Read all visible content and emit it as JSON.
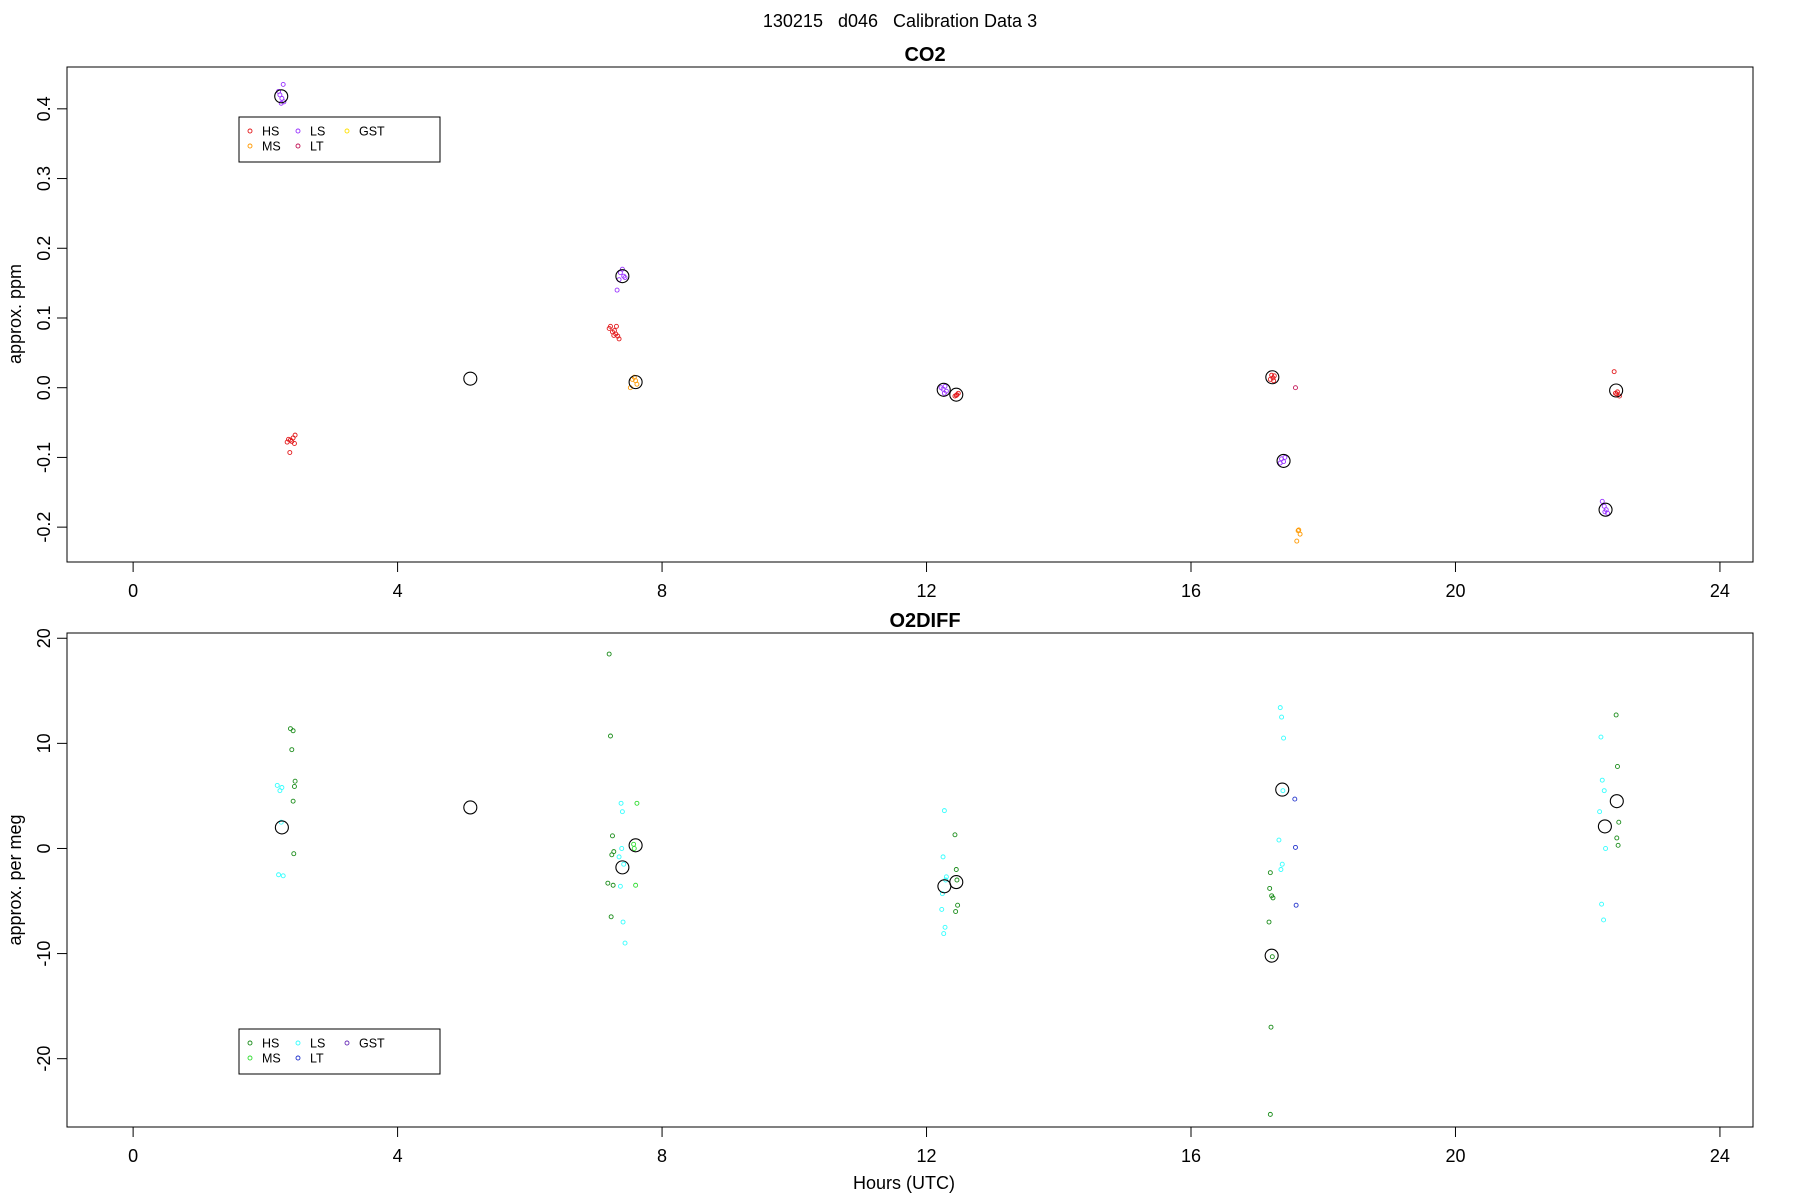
{
  "figure": {
    "supertitle": "130215   d046   Calibration Data 3",
    "xlabel": "Hours (UTC)"
  },
  "chart_data": [
    {
      "type": "scatter",
      "title": "CO2",
      "xlabel": "",
      "ylabel": "approx. ppm",
      "xlim": [
        -1,
        24.5
      ],
      "ylim": [
        -0.25,
        0.46
      ],
      "xticks": [
        0,
        4,
        8,
        12,
        16,
        20,
        24
      ],
      "yticks": [
        -0.2,
        -0.1,
        0.0,
        0.1,
        0.2,
        0.3,
        0.4
      ],
      "ytick_labels": [
        "-0.2",
        "-0.1",
        "0.0",
        "0.1",
        "0.2",
        "0.3",
        "0.4"
      ],
      "legend": {
        "position": "top-left",
        "columns": 3,
        "entries": [
          "HS",
          "MS",
          "LS",
          "LT",
          "GST"
        ]
      },
      "series": [
        {
          "name": "HS",
          "color": "#e31a1c",
          "marker": "small-circle",
          "x": [
            2.38,
            2.42,
            2.35,
            2.45,
            2.33,
            2.44,
            2.4,
            2.37,
            7.22,
            7.28,
            7.3,
            7.25,
            7.33,
            7.2,
            7.35,
            7.27,
            7.31,
            12.43,
            12.46,
            12.48,
            12.45,
            17.22,
            17.24,
            17.26,
            17.2,
            17.25,
            22.42,
            22.45,
            22.48,
            22.44,
            22.4
          ],
          "y": [
            -0.075,
            -0.072,
            -0.074,
            -0.068,
            -0.078,
            -0.08,
            -0.077,
            -0.093,
            0.088,
            0.082,
            0.077,
            0.08,
            0.074,
            0.085,
            0.07,
            0.075,
            0.088,
            -0.012,
            -0.01,
            -0.008,
            -0.011,
            0.018,
            0.014,
            0.017,
            0.012,
            0.01,
            -0.008,
            -0.006,
            -0.012,
            -0.009,
            0.023
          ]
        },
        {
          "name": "MS",
          "color": "#ff9900",
          "marker": "small-circle",
          "x": [
            7.55,
            7.58,
            7.62,
            7.52,
            7.6,
            17.62,
            17.65,
            17.6,
            17.63
          ],
          "y": [
            0.012,
            0.015,
            0.005,
            0.0,
            0.01,
            -0.205,
            -0.21,
            -0.22,
            -0.204
          ]
        },
        {
          "name": "LS",
          "color": "#9933ff",
          "marker": "small-circle",
          "x": [
            2.22,
            2.25,
            2.28,
            2.2,
            2.27,
            2.24,
            7.37,
            7.4,
            7.42,
            7.35,
            7.44,
            7.32,
            12.25,
            12.28,
            12.3,
            12.22,
            12.27,
            17.37,
            17.4,
            17.42,
            17.35,
            22.25,
            22.28,
            22.22,
            22.3,
            22.26
          ],
          "y": [
            0.42,
            0.415,
            0.41,
            0.425,
            0.435,
            0.408,
            0.165,
            0.17,
            0.16,
            0.155,
            0.158,
            0.14,
            -0.002,
            0.002,
            -0.005,
            0.0,
            -0.008,
            -0.102,
            -0.106,
            -0.1,
            -0.108,
            -0.17,
            -0.175,
            -0.163,
            -0.18,
            -0.178
          ]
        },
        {
          "name": "LT",
          "color": "#c21456",
          "marker": "small-circle",
          "x": [
            17.58
          ],
          "y": [
            0.0
          ]
        },
        {
          "name": "GST",
          "color": "#ffe100",
          "marker": "small-circle",
          "x": [],
          "y": []
        },
        {
          "name": "",
          "color": "#000000",
          "marker": "large-open-circle",
          "x": [
            2.24,
            5.1,
            7.4,
            7.6,
            12.26,
            12.45,
            17.23,
            17.4,
            22.27,
            22.43
          ],
          "y": [
            0.418,
            0.013,
            0.16,
            0.008,
            -0.003,
            -0.01,
            0.015,
            -0.105,
            -0.175,
            -0.004
          ]
        }
      ]
    },
    {
      "type": "scatter",
      "title": "O2DIFF",
      "xlabel": "Hours (UTC)",
      "ylabel": "approx. per meg",
      "xlim": [
        -1,
        24.5
      ],
      "ylim": [
        -26.5,
        20.5
      ],
      "xticks": [
        0,
        4,
        8,
        12,
        16,
        20,
        24
      ],
      "yticks": [
        -20,
        -10,
        0,
        10,
        20
      ],
      "ytick_labels": [
        "-20",
        "-10",
        "0",
        "10",
        "20"
      ],
      "legend": {
        "position": "bottom-left",
        "columns": 3,
        "entries": [
          "HS",
          "MS",
          "LS",
          "LT",
          "GST"
        ]
      },
      "series": [
        {
          "name": "HS",
          "color": "#1a8c1a",
          "marker": "small-circle",
          "x": [
            2.38,
            2.42,
            2.4,
            2.45,
            2.44,
            2.42,
            2.43,
            7.2,
            7.22,
            7.25,
            7.27,
            7.24,
            7.18,
            7.26,
            7.23,
            12.43,
            12.45,
            12.47,
            12.44,
            12.46,
            17.2,
            17.22,
            17.24,
            17.18,
            17.21,
            17.23,
            17.2,
            17.19,
            22.43,
            22.45,
            22.47,
            22.44,
            22.46
          ],
          "y": [
            11.4,
            11.2,
            9.4,
            6.4,
            5.9,
            4.5,
            -0.5,
            18.5,
            10.7,
            1.2,
            -0.3,
            -0.6,
            -3.3,
            -3.5,
            -6.5,
            1.3,
            -2.0,
            -5.4,
            -6.0,
            -3.0,
            -2.3,
            -4.5,
            -4.7,
            -7.0,
            -17.0,
            -10.3,
            -25.3,
            -3.8,
            12.7,
            7.8,
            2.5,
            1.0,
            0.3
          ]
        },
        {
          "name": "MS",
          "color": "#33dd33",
          "marker": "small-circle",
          "x": [
            7.62,
            7.6,
            7.58,
            7.57
          ],
          "y": [
            4.3,
            -3.5,
            0.0,
            0.4
          ]
        },
        {
          "name": "LS",
          "color": "#33ffff",
          "marker": "small-circle",
          "x": [
            2.18,
            2.22,
            2.24,
            2.2,
            2.27,
            2.25,
            7.38,
            7.4,
            7.35,
            7.42,
            7.37,
            7.41,
            7.44,
            7.39,
            12.27,
            12.25,
            12.3,
            12.23,
            12.28,
            12.26,
            12.24,
            12.29,
            17.35,
            17.37,
            17.4,
            17.33,
            17.38,
            17.36,
            17.39,
            22.2,
            22.22,
            22.25,
            22.18,
            22.21,
            22.24,
            22.27
          ],
          "y": [
            6.0,
            5.5,
            2.5,
            -2.5,
            -2.6,
            5.8,
            4.3,
            3.5,
            -0.8,
            -1.5,
            -3.6,
            -7.0,
            -9.0,
            0.0,
            3.6,
            -0.8,
            -2.7,
            -5.8,
            -7.5,
            -8.1,
            -4.3,
            -3.0,
            13.4,
            12.5,
            10.5,
            0.8,
            -1.5,
            -2.0,
            5.5,
            10.6,
            6.5,
            5.5,
            3.5,
            -5.3,
            -6.8,
            0.0
          ]
        },
        {
          "name": "LT",
          "color": "#2233cc",
          "marker": "small-circle",
          "x": [
            17.57,
            17.58,
            17.59
          ],
          "y": [
            4.7,
            0.1,
            -5.4
          ]
        },
        {
          "name": "GST",
          "color": "#6a2fb8",
          "marker": "small-circle",
          "x": [],
          "y": []
        },
        {
          "name": "",
          "color": "#000000",
          "marker": "large-open-circle",
          "x": [
            2.25,
            5.1,
            7.4,
            7.6,
            12.27,
            12.45,
            17.22,
            17.38,
            22.26,
            22.44
          ],
          "y": [
            2.0,
            3.9,
            -1.8,
            0.3,
            -3.6,
            -3.2,
            -10.2,
            5.6,
            2.1,
            4.5
          ]
        }
      ]
    }
  ]
}
